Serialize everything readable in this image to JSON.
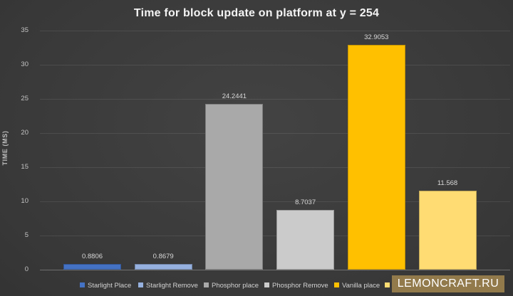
{
  "watermark": "LEMONCRAFT.RU",
  "chart_data": {
    "type": "bar",
    "title": "Time for block update on platform at y = 254",
    "xlabel": "",
    "ylabel": "TIME (MS)",
    "ylim": [
      0,
      35
    ],
    "yticks": [
      0,
      5,
      10,
      15,
      20,
      25,
      30,
      35
    ],
    "grid": true,
    "legend_position": "bottom",
    "series": [
      {
        "name": "Starlight Place",
        "value": 0.8806,
        "data_label": "0.8806",
        "color": "#4472C4",
        "legend_label": "Starlight Place"
      },
      {
        "name": "Starlight Remove",
        "value": 0.8679,
        "data_label": "0.8679",
        "color": "#96B1DF",
        "legend_label": "Starlight Remove"
      },
      {
        "name": "Phosphor place",
        "value": 24.2441,
        "data_label": "24.2441",
        "color": "#A9A9A9",
        "legend_label": "Phosphor place"
      },
      {
        "name": "Phosphor Remove",
        "value": 8.7037,
        "data_label": "8.7037",
        "color": "#CBCBCB",
        "legend_label": "Phosphor Remove"
      },
      {
        "name": "Vanilla place",
        "value": 32.9053,
        "data_label": "32.9053",
        "color": "#FFC000",
        "legend_label": "Vanilla place"
      },
      {
        "name": "",
        "value": 11.568,
        "data_label": "11.568",
        "color": "#FFDC73",
        "legend_label": ""
      }
    ]
  },
  "colors": {
    "background_center": "#434343",
    "background_edge": "#262626",
    "title_text": "#F4F4F4",
    "axis_text": "#C4C4C4",
    "data_label_text": "#D8D8D8",
    "watermark_background": "#927A4B",
    "watermark_text": "#FFFFFF"
  }
}
